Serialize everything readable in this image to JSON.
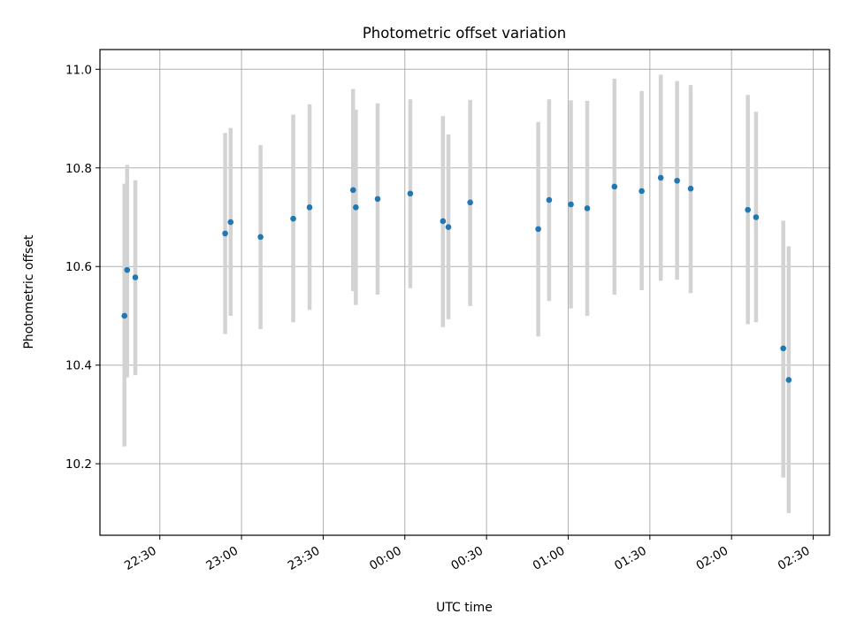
{
  "chart_data": {
    "type": "scatter",
    "title": "Photometric offset variation",
    "xlabel": "UTC time",
    "ylabel": "Photometric offset",
    "grid": true,
    "x_range": [
      "22:08",
      "02:36"
    ],
    "ylim": [
      10.055,
      11.04
    ],
    "yticks": [
      10.2,
      10.4,
      10.6,
      10.8,
      11.0
    ],
    "ytick_labels": [
      "10.2",
      "10.4",
      "10.6",
      "10.8",
      "11.0"
    ],
    "xticks": [
      "22:30",
      "23:00",
      "23:30",
      "00:00",
      "00:30",
      "01:00",
      "01:30",
      "02:00",
      "02:30"
    ],
    "xtick_labels": [
      "22:30",
      "23:00",
      "23:30",
      "00:00",
      "00:30",
      "01:00",
      "01:30",
      "02:00",
      "02:30"
    ],
    "colors": {
      "point": "#1f77b4",
      "errorbar": "#d3d3d3",
      "grid": "#b0b0b0"
    },
    "points": [
      {
        "x": "22:17",
        "y": 10.5,
        "ylow": 10.235,
        "yhigh": 10.768
      },
      {
        "x": "22:18",
        "y": 10.593,
        "ylow": 10.375,
        "yhigh": 10.806
      },
      {
        "x": "22:21",
        "y": 10.578,
        "ylow": 10.38,
        "yhigh": 10.775
      },
      {
        "x": "22:54",
        "y": 10.667,
        "ylow": 10.463,
        "yhigh": 10.871
      },
      {
        "x": "22:56",
        "y": 10.69,
        "ylow": 10.5,
        "yhigh": 10.881
      },
      {
        "x": "23:07",
        "y": 10.66,
        "ylow": 10.473,
        "yhigh": 10.846
      },
      {
        "x": "23:19",
        "y": 10.697,
        "ylow": 10.487,
        "yhigh": 10.908
      },
      {
        "x": "23:25",
        "y": 10.72,
        "ylow": 10.512,
        "yhigh": 10.929
      },
      {
        "x": "23:41",
        "y": 10.755,
        "ylow": 10.55,
        "yhigh": 10.96
      },
      {
        "x": "23:42",
        "y": 10.72,
        "ylow": 10.522,
        "yhigh": 10.918
      },
      {
        "x": "23:50",
        "y": 10.737,
        "ylow": 10.543,
        "yhigh": 10.931
      },
      {
        "x": "00:02",
        "y": 10.748,
        "ylow": 10.556,
        "yhigh": 10.939
      },
      {
        "x": "00:14",
        "y": 10.692,
        "ylow": 10.477,
        "yhigh": 10.905
      },
      {
        "x": "00:16",
        "y": 10.68,
        "ylow": 10.493,
        "yhigh": 10.868
      },
      {
        "x": "00:24",
        "y": 10.73,
        "ylow": 10.52,
        "yhigh": 10.938
      },
      {
        "x": "00:49",
        "y": 10.676,
        "ylow": 10.458,
        "yhigh": 10.893
      },
      {
        "x": "00:53",
        "y": 10.735,
        "ylow": 10.53,
        "yhigh": 10.939
      },
      {
        "x": "01:01",
        "y": 10.726,
        "ylow": 10.515,
        "yhigh": 10.937
      },
      {
        "x": "01:07",
        "y": 10.718,
        "ylow": 10.5,
        "yhigh": 10.936
      },
      {
        "x": "01:17",
        "y": 10.762,
        "ylow": 10.543,
        "yhigh": 10.981
      },
      {
        "x": "01:27",
        "y": 10.753,
        "ylow": 10.552,
        "yhigh": 10.956
      },
      {
        "x": "01:34",
        "y": 10.78,
        "ylow": 10.571,
        "yhigh": 10.989
      },
      {
        "x": "01:40",
        "y": 10.774,
        "ylow": 10.573,
        "yhigh": 10.976
      },
      {
        "x": "01:45",
        "y": 10.758,
        "ylow": 10.546,
        "yhigh": 10.968
      },
      {
        "x": "02:06",
        "y": 10.715,
        "ylow": 10.483,
        "yhigh": 10.948
      },
      {
        "x": "02:09",
        "y": 10.7,
        "ylow": 10.487,
        "yhigh": 10.914
      },
      {
        "x": "02:19",
        "y": 10.434,
        "ylow": 10.172,
        "yhigh": 10.693
      },
      {
        "x": "02:21",
        "y": 10.37,
        "ylow": 10.1,
        "yhigh": 10.641
      }
    ]
  }
}
